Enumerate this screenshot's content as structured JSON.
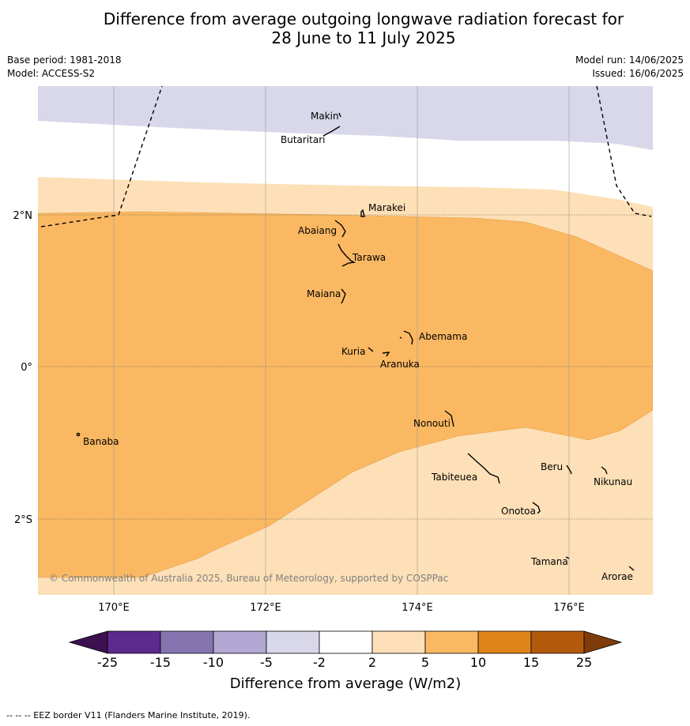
{
  "title": {
    "line1": "Difference from average outgoing longwave radiation forecast for",
    "line2": "28 June to 11 July 2025"
  },
  "meta": {
    "base_period": "Base period: 1981-2018",
    "model": "Model: ACCESS-S2",
    "model_run": "Model run: 14/06/2025",
    "issued": "Issued: 16/06/2025"
  },
  "map": {
    "lat_labels": [
      "2°N",
      "0°",
      "2°S"
    ],
    "lon_labels": [
      "170°E",
      "172°E",
      "174°E",
      "176°E"
    ],
    "copyright": "© Commonwealth of Australia 2025, Bureau of Meteorology, supported by COSPPac",
    "islands": [
      "Makin",
      "Butaritari",
      "Marakei",
      "Abaiang",
      "Tarawa",
      "Maiana",
      "Abemama",
      "Kuria",
      "Aranuka",
      "Nonouti",
      "Banaba",
      "Beru",
      "Tabiteuea",
      "Nikunau",
      "Onotoa",
      "Tamana",
      "Arorae"
    ]
  },
  "legend": {
    "ticks": [
      "-25",
      "-15",
      "-10",
      "-5",
      "-2",
      "2",
      "5",
      "10",
      "15",
      "25"
    ],
    "colors": [
      "#3d1050",
      "#5b2a8c",
      "#8574b0",
      "#b2a8d3",
      "#d8d8ea",
      "#ffffff",
      "#fde0b7",
      "#fbb862",
      "#e0841a",
      "#b35a0a",
      "#7f3c0a"
    ],
    "title": "Difference from average (W/m2)"
  },
  "footnote": "-- -- -- EEZ border V11 (Flanders Marine Institute, 2019)."
}
